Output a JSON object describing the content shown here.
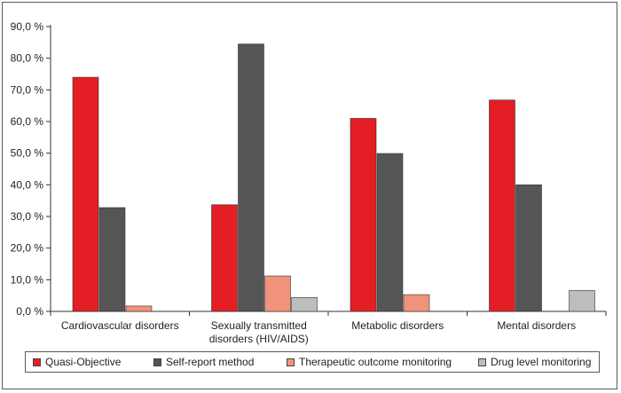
{
  "chart_data": {
    "type": "bar",
    "categories": [
      "Cardiovascular disorders",
      "Sexually transmitted disorders (HIV/AIDS)",
      "Metabolic disorders",
      "Mental disorders"
    ],
    "category_lines": [
      [
        "Cardiovascular disorders"
      ],
      [
        "Sexually transmitted",
        "disorders (HIV/AIDS)"
      ],
      [
        "Metabolic disorders"
      ],
      [
        "Mental disorders"
      ]
    ],
    "series": [
      {
        "name": "Quasi-Objective",
        "color": "#e31e24",
        "values": [
          74.0,
          33.7,
          61.0,
          66.8
        ]
      },
      {
        "name": "Self-report method",
        "color": "#555555",
        "values": [
          32.8,
          84.5,
          49.9,
          40.0
        ]
      },
      {
        "name": "Therapeutic outcome monitoring",
        "color": "#f0937a",
        "values": [
          1.7,
          11.2,
          5.3,
          null
        ]
      },
      {
        "name": "Drug level monitoring",
        "color": "#bdbdbd",
        "values": [
          null,
          4.4,
          null,
          6.6
        ]
      }
    ],
    "yticks": [
      "0,0 %",
      "10,0 %",
      "20,0 %",
      "30,0 %",
      "40,0 %",
      "50,0 %",
      "60,0 %",
      "70,0 %",
      "80,0 %",
      "90,0 %"
    ],
    "ylim": [
      0,
      90
    ],
    "title": "",
    "xlabel": "",
    "ylabel": "",
    "legend_position": "bottom"
  }
}
